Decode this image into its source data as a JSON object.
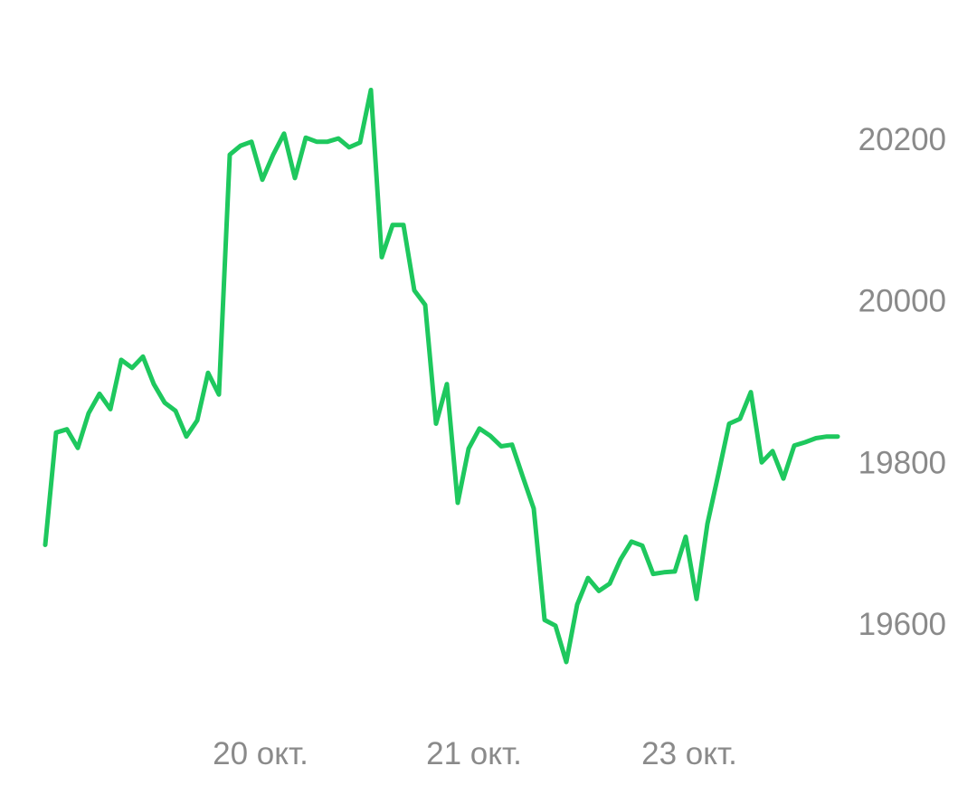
{
  "chart_data": {
    "type": "line",
    "title": "",
    "xlabel": "",
    "ylabel": "",
    "x_tick_labels": [
      "20 окт.",
      "21 окт.",
      "23 окт."
    ],
    "y_tick_labels": [
      "20200",
      "20000",
      "19800",
      "19600"
    ],
    "y_ticks": [
      20200,
      20000,
      19800,
      19600
    ],
    "ylim": [
      19550,
      20260
    ],
    "line_color": "#1ec85e",
    "grid": false,
    "legend": "none",
    "series": [
      {
        "values": [
          19698,
          19837,
          19841,
          19818,
          19861,
          19885,
          19866,
          19927,
          19917,
          19931,
          19897,
          19874,
          19864,
          19832,
          19852,
          19911,
          19884,
          20181,
          20192,
          20197,
          20150,
          20181,
          20207,
          20152,
          20202,
          20197,
          20197,
          20201,
          20190,
          20196,
          20261,
          20054,
          20094,
          20094,
          20013,
          19995,
          19848,
          19897,
          19750,
          19817,
          19842,
          19833,
          19820,
          19822,
          19782,
          19743,
          19605,
          19598,
          19553,
          19624,
          19657,
          19641,
          19650,
          19680,
          19702,
          19697,
          19662,
          19664,
          19665,
          19708,
          19631,
          19724,
          19785,
          19848,
          19854,
          19887,
          19800,
          19814,
          19780,
          19821,
          19825,
          19830,
          19832,
          19832
        ]
      }
    ]
  }
}
